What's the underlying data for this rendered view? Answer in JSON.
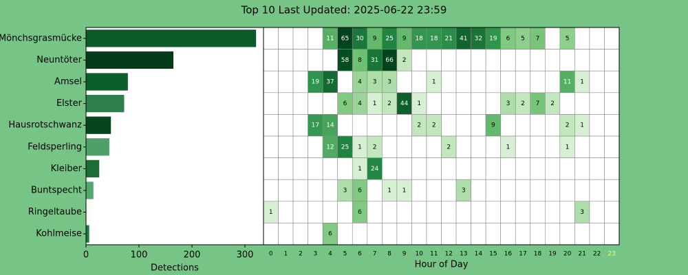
{
  "title": "Top 10 Last Updated: 2025-06-22 23:59",
  "chart_data": [
    {
      "type": "barh",
      "xlabel": "Detections",
      "categories": [
        "Mönchsgrasmücke",
        "Neuntöter",
        "Amsel",
        "Elster",
        "Hausrotschwanz",
        "Feldsperling",
        "Kleiber",
        "Buntspecht",
        "Ringeltaube",
        "Kohlmeise"
      ],
      "values": [
        321,
        165,
        79,
        72,
        47,
        44,
        25,
        14,
        10,
        6
      ],
      "colors": [
        "#0b5a2a",
        "#063b1a",
        "#0c5e2b",
        "#2e7f4d",
        "#07461d",
        "#4ea066",
        "#1b6d35",
        "#52a96b",
        "#f7fcf5",
        "#1a7a3a"
      ],
      "xlim": [
        0,
        335
      ],
      "xticks": [
        0,
        100,
        200,
        300
      ]
    },
    {
      "type": "heatmap",
      "xlabel": "Hour of Day",
      "x": [
        0,
        1,
        2,
        3,
        4,
        5,
        6,
        7,
        8,
        9,
        10,
        11,
        12,
        13,
        14,
        15,
        16,
        17,
        18,
        19,
        20,
        21,
        22,
        23
      ],
      "highlight": 23,
      "highlight_color": "#ffff33",
      "values": [
        [
          null,
          null,
          null,
          null,
          11,
          65,
          30,
          9,
          25,
          9,
          18,
          18,
          21,
          41,
          32,
          19,
          6,
          5,
          7,
          null,
          5,
          null,
          null,
          null
        ],
        [
          null,
          null,
          null,
          null,
          null,
          58,
          8,
          31,
          66,
          2,
          null,
          null,
          null,
          null,
          null,
          null,
          null,
          null,
          null,
          null,
          null,
          null,
          null,
          null
        ],
        [
          null,
          null,
          null,
          19,
          37,
          null,
          4,
          3,
          3,
          null,
          null,
          1,
          null,
          null,
          null,
          null,
          null,
          null,
          null,
          null,
          11,
          1,
          null,
          null
        ],
        [
          null,
          null,
          null,
          null,
          null,
          6,
          4,
          1,
          2,
          44,
          1,
          null,
          null,
          null,
          null,
          null,
          3,
          2,
          7,
          2,
          null,
          null,
          null,
          null
        ],
        [
          null,
          null,
          null,
          17,
          14,
          null,
          null,
          null,
          null,
          null,
          2,
          2,
          null,
          null,
          null,
          9,
          null,
          null,
          null,
          null,
          2,
          1,
          null,
          null
        ],
        [
          null,
          null,
          null,
          null,
          12,
          25,
          1,
          2,
          null,
          null,
          null,
          null,
          2,
          null,
          null,
          null,
          1,
          null,
          null,
          null,
          1,
          null,
          null,
          null
        ],
        [
          null,
          null,
          null,
          null,
          null,
          null,
          1,
          24,
          null,
          null,
          null,
          null,
          null,
          null,
          null,
          null,
          null,
          null,
          null,
          null,
          null,
          null,
          null,
          null
        ],
        [
          null,
          null,
          null,
          null,
          null,
          3,
          6,
          null,
          1,
          1,
          null,
          null,
          null,
          3,
          null,
          null,
          null,
          null,
          null,
          null,
          null,
          null,
          null,
          null
        ],
        [
          1,
          null,
          null,
          null,
          null,
          null,
          6,
          null,
          null,
          null,
          null,
          null,
          null,
          null,
          null,
          null,
          null,
          null,
          null,
          null,
          null,
          3,
          null,
          null
        ],
        [
          null,
          null,
          null,
          null,
          6,
          null,
          null,
          null,
          null,
          null,
          null,
          null,
          null,
          null,
          null,
          null,
          null,
          null,
          null,
          null,
          null,
          null,
          null,
          null
        ]
      ]
    }
  ]
}
